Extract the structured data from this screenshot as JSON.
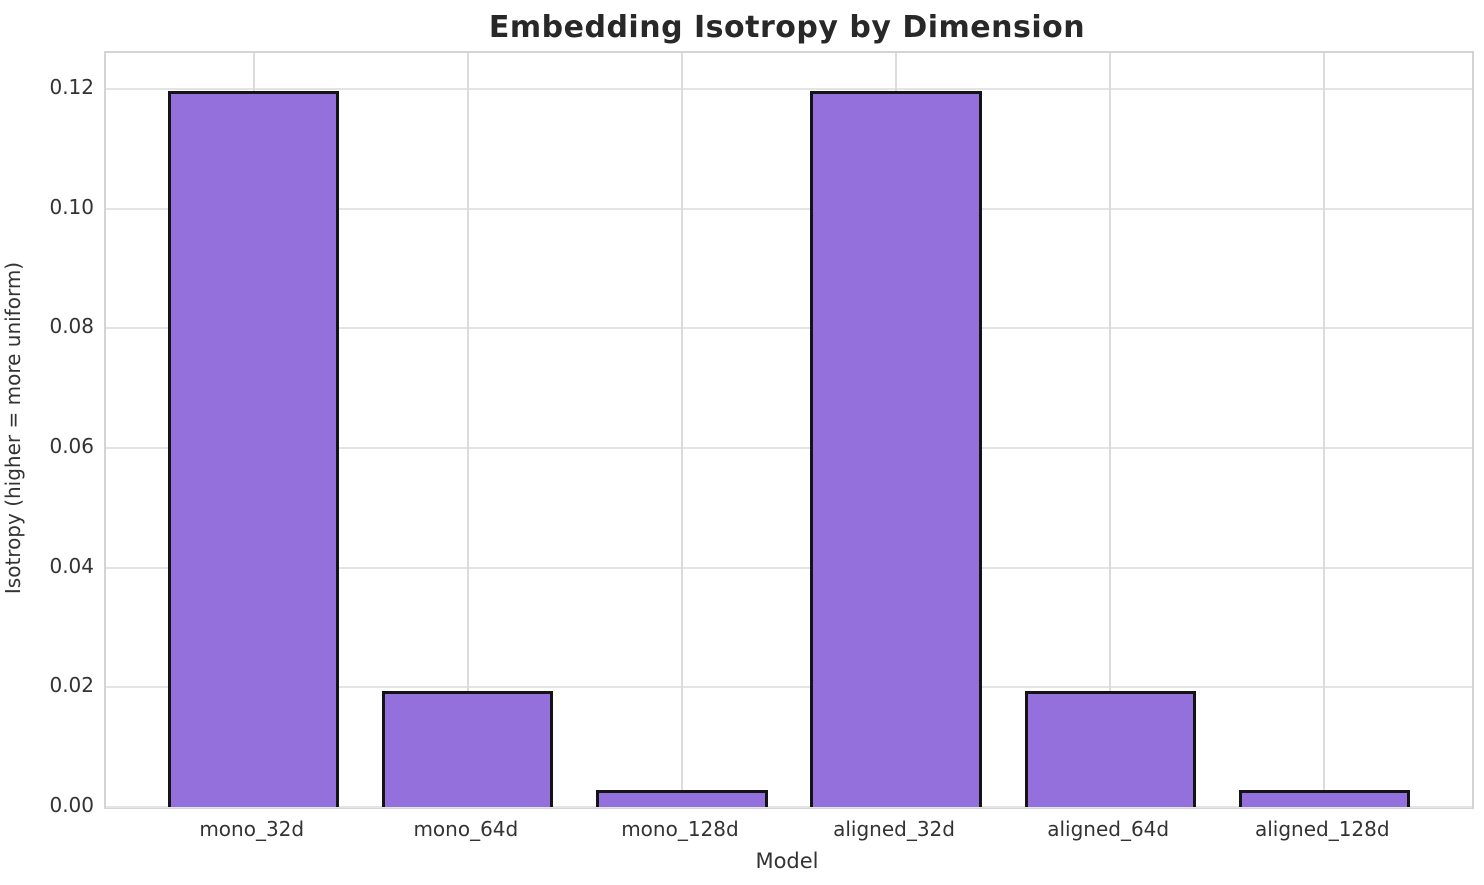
{
  "chart_data": {
    "type": "bar",
    "title": "Embedding Isotropy by Dimension",
    "xlabel": "Model",
    "ylabel": "Isotropy (higher = more uniform)",
    "categories": [
      "mono_32d",
      "mono_64d",
      "mono_128d",
      "aligned_32d",
      "aligned_64d",
      "aligned_128d"
    ],
    "values": [
      0.1197,
      0.0194,
      0.0029,
      0.1197,
      0.0194,
      0.0029
    ],
    "ylim": [
      0,
      0.126
    ],
    "yticks": [
      0.0,
      0.02,
      0.04,
      0.06,
      0.08,
      0.1,
      0.12
    ],
    "ytick_labels": [
      "0.00",
      "0.02",
      "0.04",
      "0.06",
      "0.08",
      "0.10",
      "0.12"
    ],
    "grid": true,
    "legend": "none",
    "bar_color": "#9370DB",
    "bar_edge_color": "#141414",
    "grid_color": "#e4e4e4",
    "text_color": "#333333"
  }
}
